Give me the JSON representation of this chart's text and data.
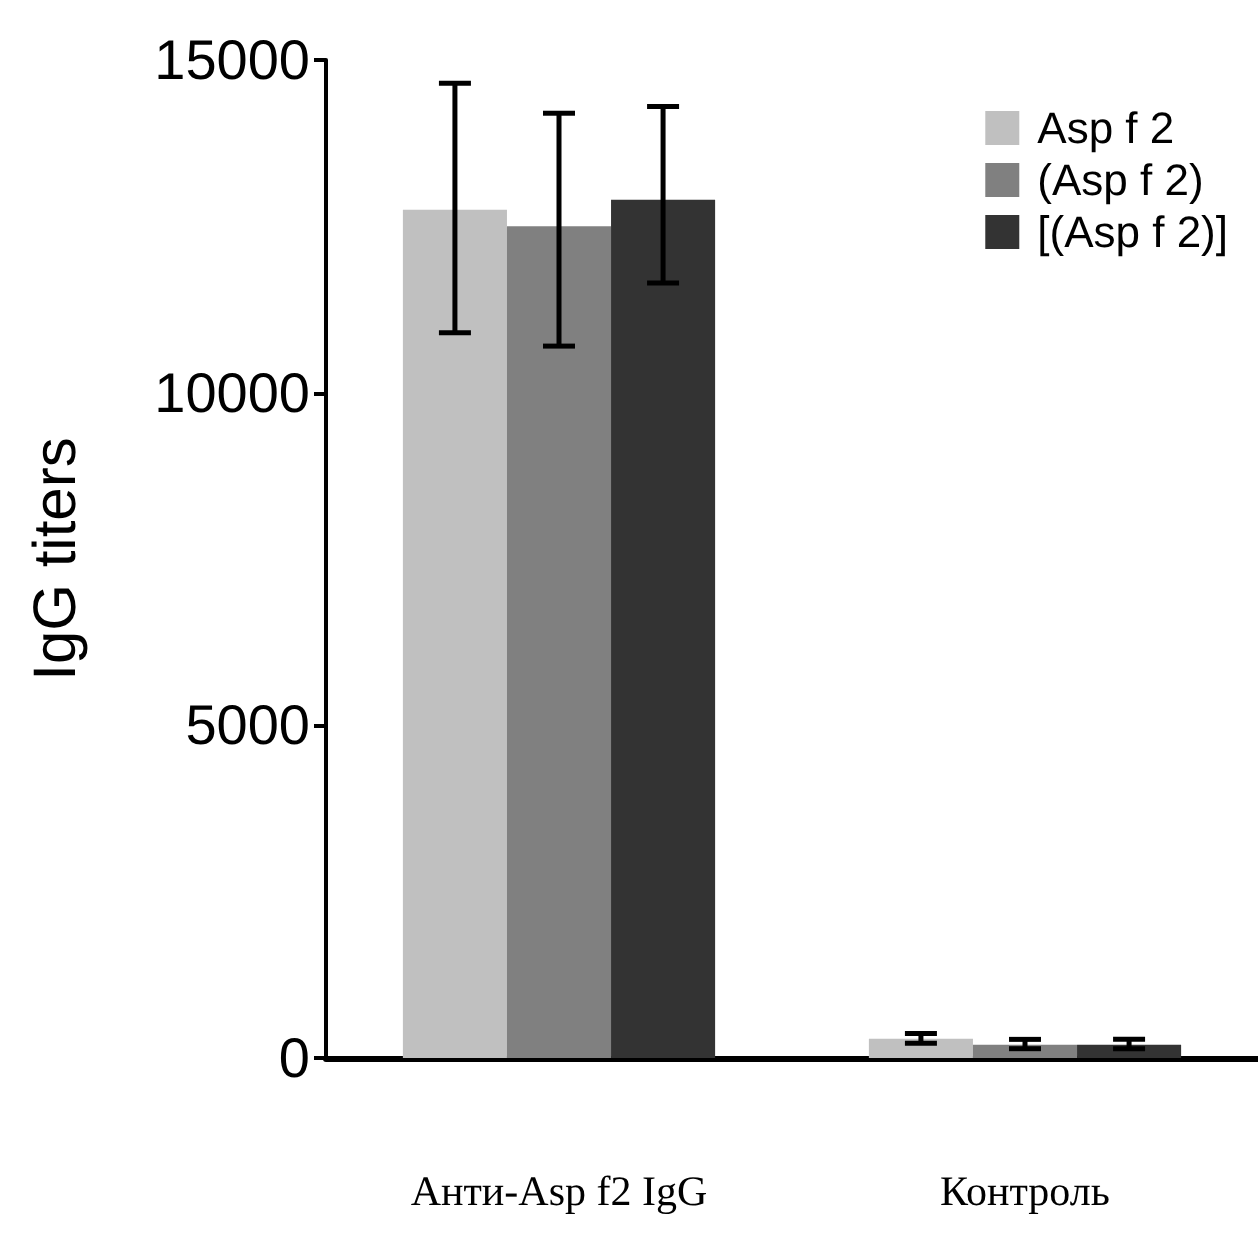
{
  "chart_data": {
    "type": "bar",
    "ylabel": "IgG titers",
    "categories": [
      "Анти-Asp f2 IgG",
      "Контроль"
    ],
    "series": [
      {
        "name": "Asp f 2",
        "color": "#c0c0c0",
        "values": [
          12750,
          290
        ],
        "errors": [
          [
            10900,
            14650
          ],
          [
            220,
            370
          ]
        ]
      },
      {
        "name": "(Asp f 2)",
        "color": "#808080",
        "values": [
          12500,
          200
        ],
        "errors": [
          [
            10700,
            14200
          ],
          [
            140,
            280
          ]
        ]
      },
      {
        "name": "[(Asp f 2)]",
        "color": "#333333",
        "values": [
          12900,
          200
        ],
        "errors": [
          [
            11650,
            14300
          ],
          [
            140,
            280
          ]
        ]
      }
    ],
    "ylim": [
      0,
      15000
    ],
    "yticks": [
      0,
      5000,
      10000,
      15000
    ],
    "grid": false,
    "legend": "top right"
  }
}
